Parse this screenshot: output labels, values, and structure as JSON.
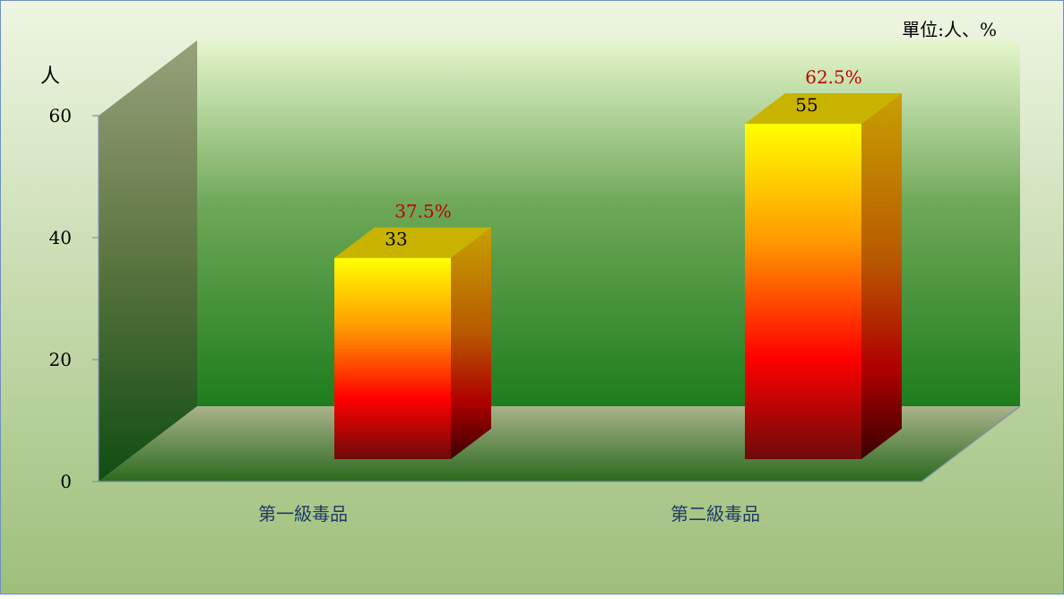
{
  "chart_data": {
    "type": "bar",
    "unit_note": "單位:人、%",
    "ylabel": "人",
    "ylim": [
      0,
      60
    ],
    "yticks": [
      0,
      20,
      40,
      60
    ],
    "categories": [
      "第一級毒品",
      "第二級毒品"
    ],
    "values": [
      33,
      55
    ],
    "percent_labels": [
      "37.5%",
      "62.5%"
    ],
    "legend": "none",
    "grid": false
  },
  "colors": {
    "bar_top": "#ffff00",
    "bar_mid": "#ff0000",
    "bar_bottom": "#6e0a0a",
    "bar_cap": "#c8b400",
    "percent_label": "#c00000",
    "category_label": "#1f3a66",
    "wall_top": "#e6f6cd",
    "wall_bottom": "#1d7d1d",
    "border": "#6e8fc0"
  }
}
